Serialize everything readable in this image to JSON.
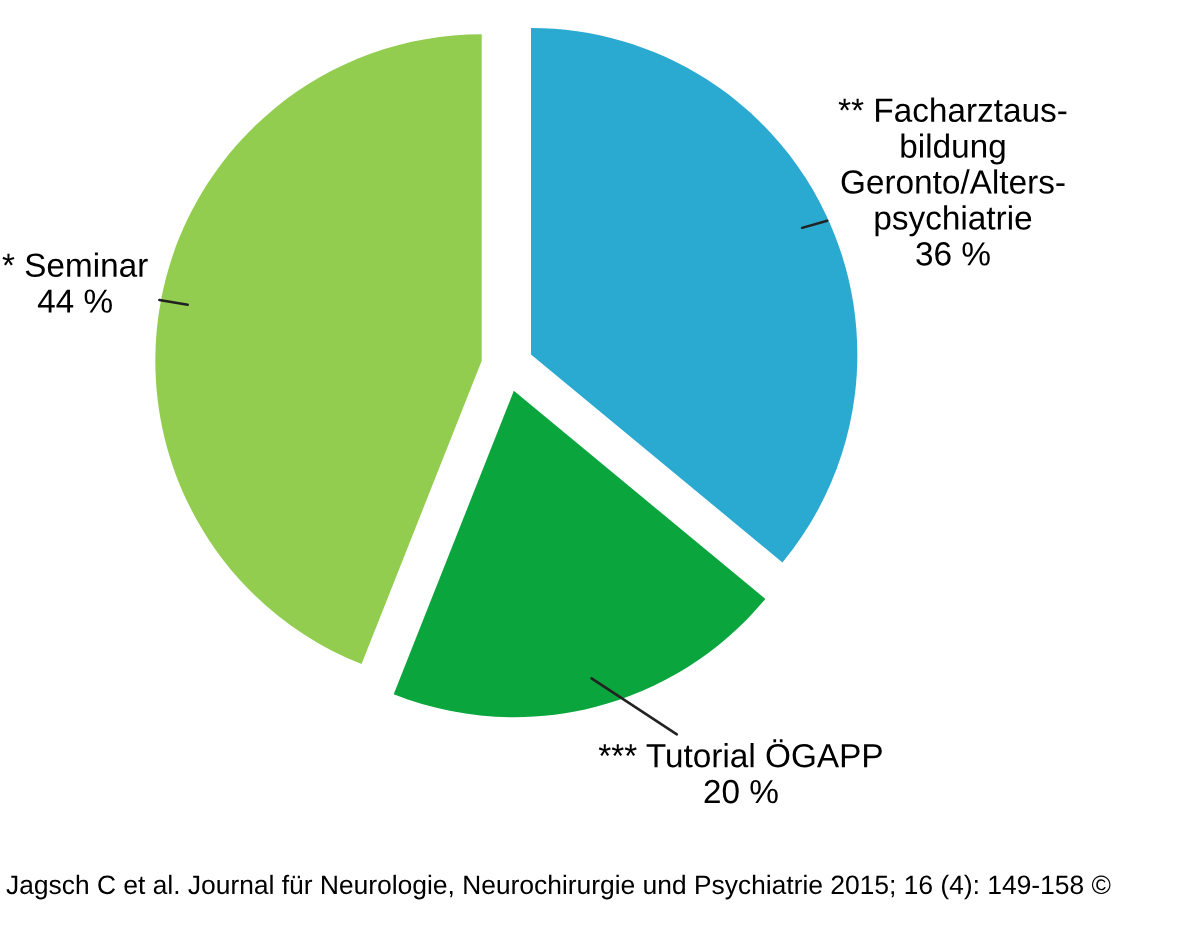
{
  "chart_data": {
    "type": "pie",
    "categories": [
      "** Facharztaus-\nbildung\nGeronto/Alters-\npsychiatrie",
      "*** Tutorial ÖGAPP",
      "* Seminar"
    ],
    "values": [
      36,
      20,
      44
    ],
    "colors": [
      "#2aa9d1",
      "#0aa53d",
      "#92cd4f"
    ],
    "value_labels": [
      "36 %",
      "20 %",
      "44 %"
    ],
    "legend": false,
    "annotations": [
      "Jagsch C et al. Journal für Neurologie, Neurochirurgie und Psychiatrie 2015; 16 (4): 149-158 ©"
    ]
  }
}
